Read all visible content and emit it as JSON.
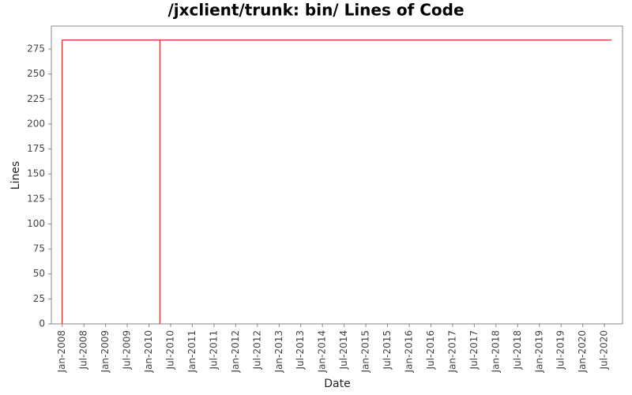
{
  "chart_data": {
    "type": "line",
    "title": "/jxclient/trunk: bin/ Lines of Code",
    "x_label": "Date",
    "y_label": "Lines",
    "color": "#cc0000",
    "x": [
      "2008-01",
      "2008-01",
      "2010-04",
      "2010-04",
      "2010-04",
      "2020-09"
    ],
    "values": [
      0,
      284,
      284,
      0,
      284,
      284
    ],
    "xlim": [
      "2007-10",
      "2020-12"
    ],
    "xticks": [
      {
        "value": "2008-01",
        "label": "Jan-2008"
      },
      {
        "value": "2008-07",
        "label": "Jul-2008"
      },
      {
        "value": "2009-01",
        "label": "Jan-2009"
      },
      {
        "value": "2009-07",
        "label": "Jul-2009"
      },
      {
        "value": "2010-01",
        "label": "Jan-2010"
      },
      {
        "value": "2010-07",
        "label": "Jul-2010"
      },
      {
        "value": "2011-01",
        "label": "Jan-2011"
      },
      {
        "value": "2011-07",
        "label": "Jul-2011"
      },
      {
        "value": "2012-01",
        "label": "Jan-2012"
      },
      {
        "value": "2012-07",
        "label": "Jul-2012"
      },
      {
        "value": "2013-01",
        "label": "Jan-2013"
      },
      {
        "value": "2013-07",
        "label": "Jul-2013"
      },
      {
        "value": "2014-01",
        "label": "Jan-2014"
      },
      {
        "value": "2014-07",
        "label": "Jul-2014"
      },
      {
        "value": "2015-01",
        "label": "Jan-2015"
      },
      {
        "value": "2015-07",
        "label": "Jul-2015"
      },
      {
        "value": "2016-01",
        "label": "Jan-2016"
      },
      {
        "value": "2016-07",
        "label": "Jul-2016"
      },
      {
        "value": "2017-01",
        "label": "Jan-2017"
      },
      {
        "value": "2017-07",
        "label": "Jul-2017"
      },
      {
        "value": "2018-01",
        "label": "Jan-2018"
      },
      {
        "value": "2018-07",
        "label": "Jul-2018"
      },
      {
        "value": "2019-01",
        "label": "Jan-2019"
      },
      {
        "value": "2019-07",
        "label": "Jul-2019"
      },
      {
        "value": "2020-01",
        "label": "Jan-2020"
      },
      {
        "value": "2020-07",
        "label": "Jul-2020"
      }
    ],
    "ylim": [
      0,
      298
    ],
    "yticks": [
      0,
      25,
      50,
      75,
      100,
      125,
      150,
      175,
      200,
      225,
      250,
      275
    ]
  }
}
